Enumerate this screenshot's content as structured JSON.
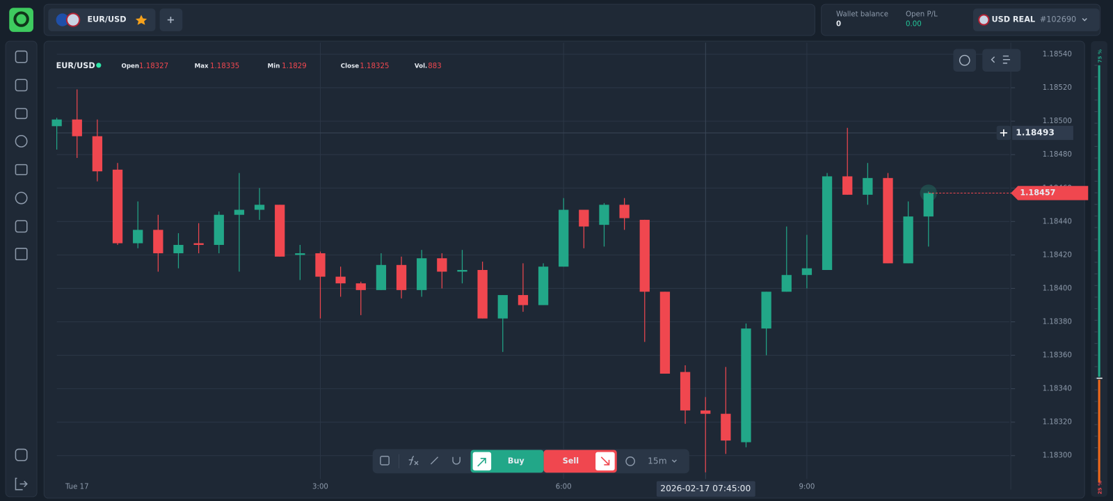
{
  "header": {
    "pair": "EUR/USD",
    "wallet_label": "Wallet balance",
    "wallet_value": "0",
    "pl_label": "Open P/L",
    "pl_value": "0.00",
    "account": "USD REAL",
    "account_id": "#102690"
  },
  "toolbar": {
    "buy": "Buy",
    "sell": "Sell",
    "timeframe": "15m"
  },
  "sentiment": {
    "values": [
      75,
      25
    ],
    "value_labels": [
      "75 %",
      "25 %"
    ],
    "colors": [
      "#22a788",
      "#f26a1b"
    ]
  },
  "chart_data": {
    "type": "candlestick",
    "symbol": "EUR/USD",
    "info": [
      {
        "label": "Open",
        "value": 1.18327
      },
      {
        "label": "Max",
        "value": 1.18335
      },
      {
        "label": "Min",
        "value": 1.1829
      },
      {
        "label": "Close",
        "value": 1.18325
      },
      {
        "label": "Vol.",
        "value": 883
      }
    ],
    "categories": [
      null,
      "Tue 17",
      null,
      null,
      null,
      null,
      null,
      null,
      null,
      null,
      null,
      null,
      null,
      "3:00",
      null,
      null,
      null,
      null,
      null,
      null,
      null,
      null,
      null,
      null,
      null,
      "6:00",
      null,
      null,
      null,
      null,
      null,
      null,
      null,
      null,
      null,
      null,
      null,
      "9:00",
      null,
      null,
      null,
      null,
      null,
      null
    ],
    "open": [
      1.18497,
      1.18501,
      1.18491,
      1.18471,
      1.18427,
      1.18435,
      1.18421,
      1.18427,
      1.18426,
      1.18444,
      1.18447,
      1.1845,
      1.1842,
      1.18421,
      1.18407,
      1.18403,
      1.18399,
      1.18414,
      1.18399,
      1.18418,
      1.1841,
      1.18411,
      1.18382,
      1.18396,
      1.1839,
      1.18413,
      1.18447,
      1.18438,
      1.1845,
      1.18441,
      1.18398,
      1.1835,
      1.18327,
      1.18325,
      1.18308,
      1.18376,
      1.18398,
      1.18408,
      1.18411,
      1.18467,
      1.18456,
      1.18466,
      1.18415,
      1.18443
    ],
    "high": [
      1.18502,
      1.18519,
      1.18501,
      1.18475,
      1.18452,
      1.18444,
      1.18433,
      1.18439,
      1.18446,
      1.18469,
      1.1846,
      1.1845,
      1.18426,
      1.18422,
      1.18413,
      1.18404,
      1.18421,
      1.18419,
      1.18423,
      1.18421,
      1.18423,
      1.18416,
      1.18396,
      1.18415,
      1.18415,
      1.18454,
      1.18447,
      1.18451,
      1.18454,
      1.18441,
      1.18398,
      1.18354,
      1.18335,
      1.18353,
      1.18379,
      1.18398,
      1.18437,
      1.18432,
      1.18469,
      1.18496,
      1.18475,
      1.18469,
      1.18452,
      1.18458
    ],
    "low": [
      1.18483,
      1.18478,
      1.18464,
      1.18426,
      1.18424,
      1.1841,
      1.18412,
      1.18421,
      1.18421,
      1.1841,
      1.18441,
      1.18419,
      1.18405,
      1.18382,
      1.18395,
      1.18384,
      1.18399,
      1.18394,
      1.18395,
      1.184,
      1.18403,
      1.18382,
      1.18362,
      1.18386,
      1.1839,
      1.18413,
      1.18424,
      1.18425,
      1.18435,
      1.18368,
      1.18349,
      1.18319,
      1.1829,
      1.18301,
      1.18305,
      1.1836,
      1.18398,
      1.184,
      1.18411,
      1.18456,
      1.1845,
      1.18415,
      1.18415,
      1.18425
    ],
    "close": [
      1.18501,
      1.18491,
      1.1847,
      1.18427,
      1.18435,
      1.18421,
      1.18426,
      1.18426,
      1.18444,
      1.18447,
      1.1845,
      1.18419,
      1.18421,
      1.18407,
      1.18403,
      1.18399,
      1.18414,
      1.18399,
      1.18418,
      1.1841,
      1.18411,
      1.18382,
      1.18396,
      1.1839,
      1.18413,
      1.18447,
      1.18437,
      1.1845,
      1.18442,
      1.18398,
      1.18349,
      1.18327,
      1.18325,
      1.18309,
      1.18376,
      1.18398,
      1.18408,
      1.18412,
      1.18467,
      1.18456,
      1.18466,
      1.18415,
      1.18443,
      1.18457
    ],
    "up_color": "#22a788",
    "down_color": "#f0474f",
    "ylim": [
      1.18286,
      1.18547
    ],
    "yticks": [
      {
        "value": 1.183,
        "label": "1.18300"
      },
      {
        "value": 1.1832,
        "label": "1.18320"
      },
      {
        "value": 1.1834,
        "label": "1.18340"
      },
      {
        "value": 1.1836,
        "label": "1.18360"
      },
      {
        "value": 1.1838,
        "label": "1.18380"
      },
      {
        "value": 1.184,
        "label": "1.18400"
      },
      {
        "value": 1.1842,
        "label": "1.18420"
      },
      {
        "value": 1.1844,
        "label": "1.18440"
      },
      {
        "value": 1.1846,
        "label": "1.18460"
      },
      {
        "value": 1.1848,
        "label": "1.18480"
      },
      {
        "value": 1.185,
        "label": "1.18500"
      },
      {
        "value": 1.1852,
        "label": "1.18520"
      },
      {
        "value": 1.1854,
        "label": "1.18540"
      }
    ],
    "grid": true,
    "last_price": 1.18457,
    "crosshair_price": 1.18493,
    "crosshair_time": "2026-02-17 07:45:00"
  }
}
